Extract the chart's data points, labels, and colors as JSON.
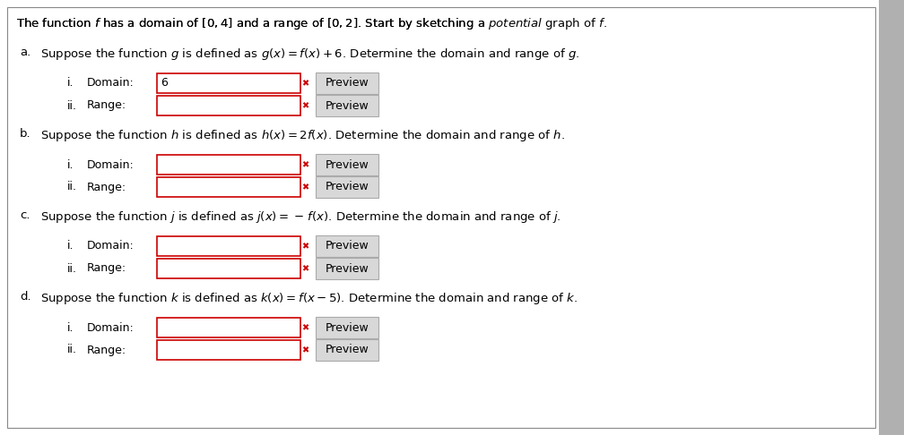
{
  "background_color": "#ffffff",
  "text_color": "#000000",
  "box_border_color": "#cc0000",
  "right_bar_color": "#b0b0b0",
  "preview_bg": "#d8d8d8",
  "preview_border": "#aaaaaa",
  "figwidth": 10.08,
  "figheight": 4.86,
  "dpi": 100,
  "title": "The function $f$ has a domain of $[0, 4]$ and a range of $[0, 2]$. Start by sketching a \\textit{potential} graph of $f$.",
  "sections": [
    {
      "label": "a.",
      "desc": "Suppose the function $g$ is defined as $g(x) = f(x) + 6$. Determine the domain and range of $g$.",
      "items": [
        {
          "roman": "i.",
          "field_label": "Domain:",
          "prefill": "6"
        },
        {
          "roman": "ii.",
          "field_label": "Range:",
          "prefill": ""
        }
      ]
    },
    {
      "label": "b.",
      "desc": "Suppose the function $h$ is defined as $h(x) = 2f(x)$. Determine the domain and range of $h$.",
      "items": [
        {
          "roman": "i.",
          "field_label": "Domain:",
          "prefill": ""
        },
        {
          "roman": "ii.",
          "field_label": "Range:",
          "prefill": ""
        }
      ]
    },
    {
      "label": "c.",
      "desc": "Suppose the function $j$ is defined as $j(x) = -\\,f(x)$. Determine the domain and range of $j$.",
      "items": [
        {
          "roman": "i.",
          "field_label": "Domain:",
          "prefill": ""
        },
        {
          "roman": "ii.",
          "field_label": "Range:",
          "prefill": ""
        }
      ]
    },
    {
      "label": "d.",
      "desc": "Suppose the function $k$ is defined as $k(x) = f(x - 5)$. Determine the domain and range of $k$.",
      "items": [
        {
          "roman": "i.",
          "field_label": "Domain:",
          "prefill": ""
        },
        {
          "roman": "ii.",
          "field_label": "Range:",
          "prefill": ""
        }
      ]
    }
  ]
}
